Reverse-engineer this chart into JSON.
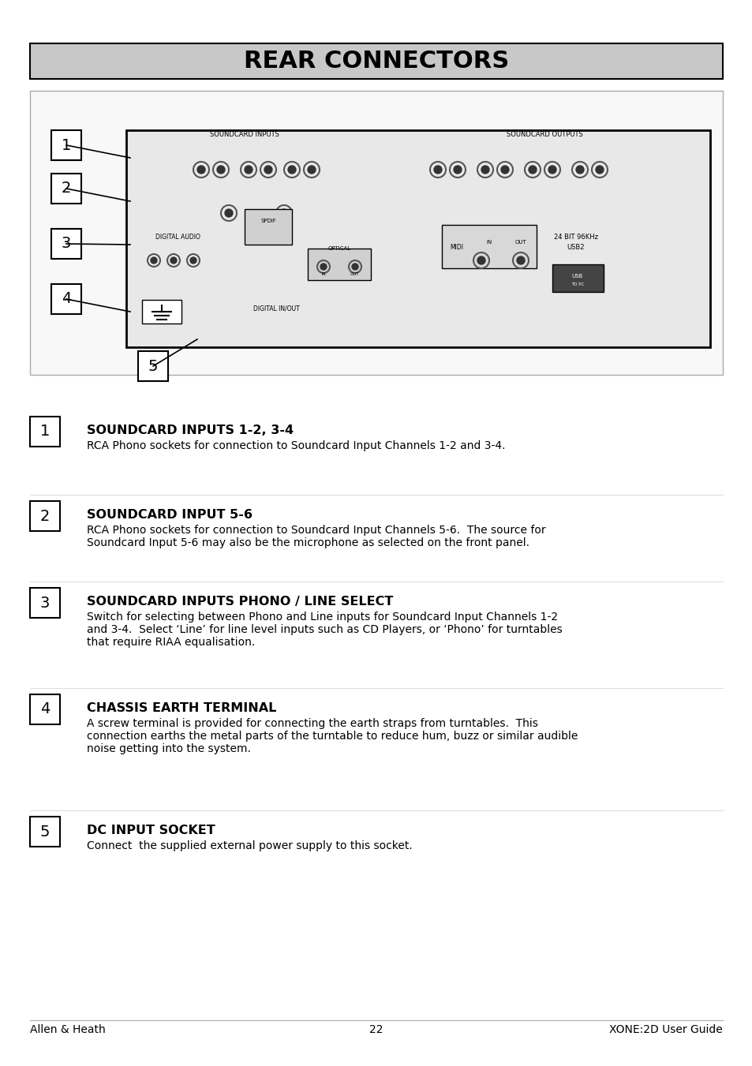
{
  "title": "REAR CONNECTORS",
  "title_bg": "#c8c8c8",
  "title_color": "#000000",
  "page_bg": "#ffffff",
  "footer_left": "Allen & Heath",
  "footer_center": "22",
  "footer_right": "XONE:2D User Guide",
  "sections": [
    {
      "number": "1",
      "heading": "SOUNDCARD INPUTS 1-2, 3-4",
      "body": "RCA Phono sockets for connection to Soundcard Input Channels 1-2 and 3-4."
    },
    {
      "number": "2",
      "heading": "SOUNDCARD INPUT 5-6",
      "body": "RCA Phono sockets for connection to Soundcard Input Channels 5-6.  The source for\nSoundcard Input 5-6 may also be the microphone as selected on the front panel."
    },
    {
      "number": "3",
      "heading": "SOUNDCARD INPUTS PHONO / LINE SELECT",
      "body": "Switch for selecting between Phono and Line inputs for Soundcard Input Channels 1-2\nand 3-4.  Select ‘Line’ for line level inputs such as CD Players, or ‘Phono’ for turntables\nthat require RIAA equalisation."
    },
    {
      "number": "4",
      "heading": "CHASSIS EARTH TERMINAL",
      "body": "A screw terminal is provided for connecting the earth straps from turntables.  This\nconnection earths the metal parts of the turntable to reduce hum, buzz or similar audible\nnoise getting into the system."
    },
    {
      "number": "5",
      "heading": "DC INPUT SOCKET",
      "body": "Connect  the supplied external power supply to this socket."
    }
  ]
}
